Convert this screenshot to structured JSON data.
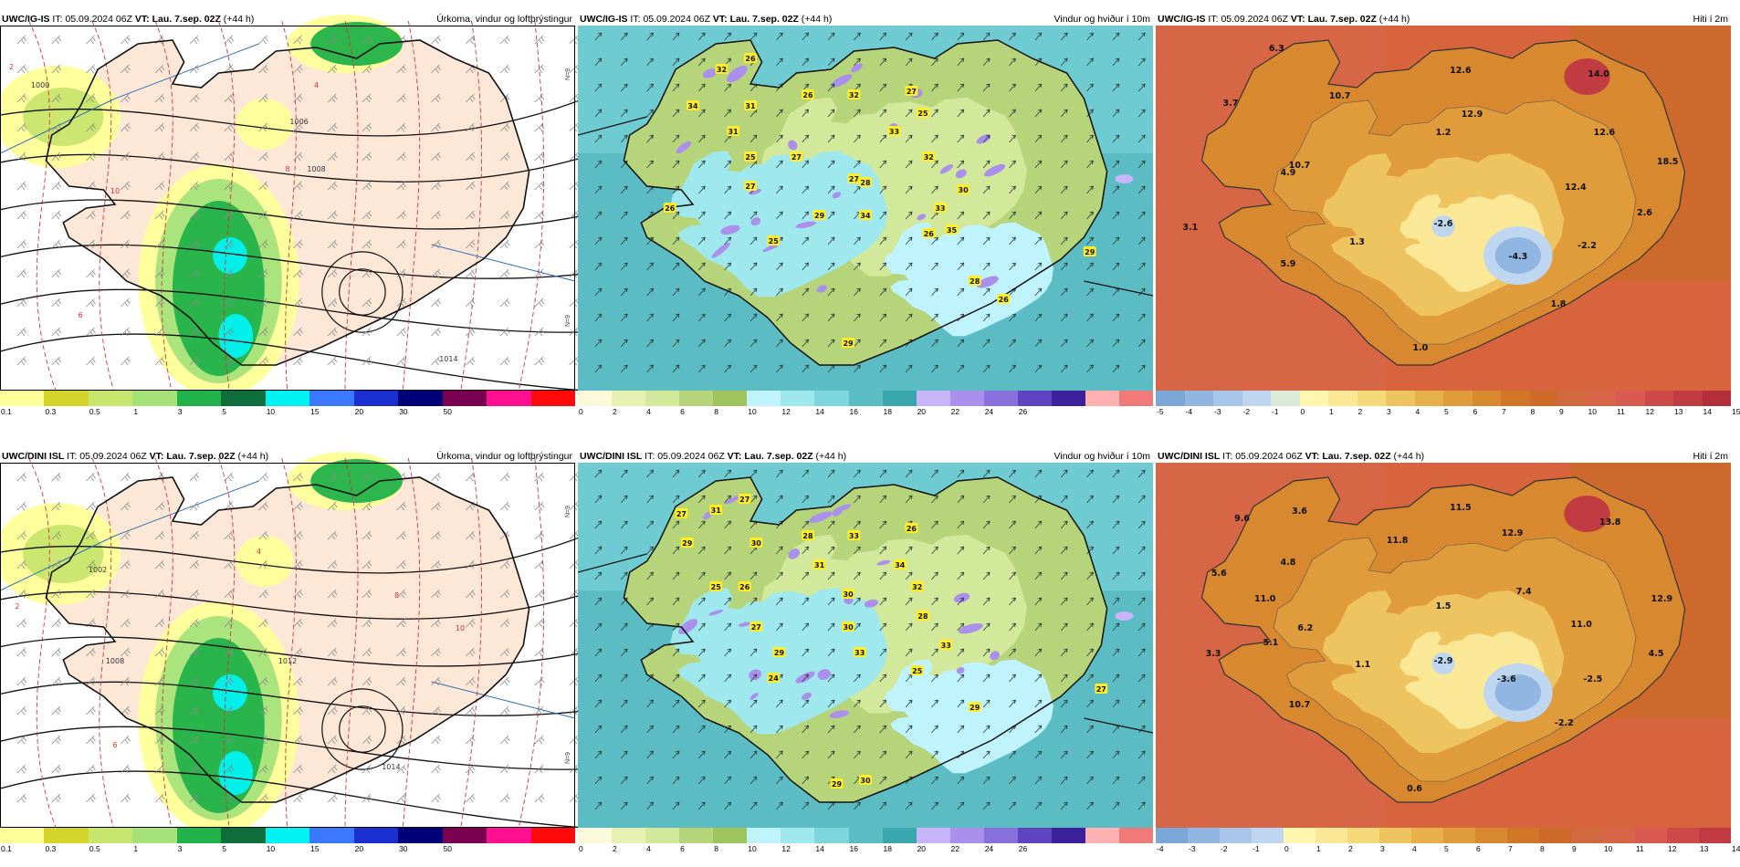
{
  "colorbars": {
    "precip": {
      "colors": [
        "#ffff99",
        "#d4d42a",
        "#c8e66e",
        "#a6e27a",
        "#22b24a",
        "#0e6d3a",
        "#00f2f2",
        "#3a78ff",
        "#1a2fd0",
        "#000078",
        "#7a0050",
        "#ff1090",
        "#ff0a0a"
      ],
      "ticks": [
        "0.1",
        "0.3",
        "0.5",
        "1",
        "3",
        "5",
        "10",
        "15",
        "20",
        "30",
        "50"
      ]
    },
    "wind": {
      "colors": [
        "#fafada",
        "#e8f0b4",
        "#d2e89a",
        "#b6d47a",
        "#9fc45e",
        "#bff4ff",
        "#9ee8ee",
        "#7cd6dc",
        "#5cbcc4",
        "#3aa6ae",
        "#c8b4f8",
        "#aa90ec",
        "#8870dc",
        "#5e44c0",
        "#3a209a",
        "#ffb0b0",
        "#f07a7a"
      ],
      "ticks": [
        "0",
        "2",
        "4",
        "6",
        "8",
        "10",
        "12",
        "14",
        "16",
        "18",
        "20",
        "22",
        "24",
        "26"
      ]
    },
    "temp_top": {
      "colors": [
        "#7ba6d8",
        "#92b6e2",
        "#a8c6ea",
        "#bfd6f0",
        "#dbead8",
        "#fff6b0",
        "#fae896",
        "#f5d878",
        "#eec460",
        "#e8b04a",
        "#e09c3a",
        "#d8882e",
        "#d07626",
        "#cc6a2a",
        "#d06a3e",
        "#d86448",
        "#d85a50",
        "#cc4a48",
        "#c03c42",
        "#b42e3a"
      ],
      "ticks": [
        "-5",
        "-4",
        "-3",
        "-2",
        "-1",
        "0",
        "1",
        "2",
        "3",
        "4",
        "5",
        "6",
        "7",
        "8",
        "9",
        "10",
        "11",
        "12",
        "13",
        "14",
        "15"
      ]
    },
    "temp_bot": {
      "colors": [
        "#7ba6d8",
        "#92b6e2",
        "#a8c6ea",
        "#bfd6f0",
        "#fff6b0",
        "#fae896",
        "#f5d878",
        "#eec460",
        "#e8b04a",
        "#e09c3a",
        "#d8882e",
        "#d07626",
        "#cc6a2a",
        "#d06a3e",
        "#d86448",
        "#d85a50",
        "#cc4a48",
        "#c03c42"
      ],
      "ticks": [
        "-4",
        "-3",
        "-2",
        "-1",
        "0",
        "1",
        "2",
        "3",
        "4",
        "5",
        "6",
        "7",
        "8",
        "9",
        "10",
        "11",
        "12",
        "13",
        "14"
      ]
    }
  },
  "panels": [
    {
      "model": "UWC/IG-IS",
      "it_label": "IT:",
      "it": "05.09.2024 06Z",
      "vt_label": "VT:",
      "vt": "Lau. 7.sep. 02Z",
      "lead": "(+44 h)",
      "variable": "Úrkoma, vindur og loftþrýstingur",
      "bar": "precip",
      "labels": [
        "1000",
        "1006",
        "1008",
        "1014",
        "10",
        "8",
        "6",
        "4",
        "2"
      ],
      "side": [
        "N=9",
        "N=9"
      ]
    },
    {
      "model": "UWC/IG-IS",
      "it_label": "IT:",
      "it": "05.09.2024 06Z",
      "vt_label": "VT:",
      "vt": "Lau. 7.sep. 02Z",
      "lead": "(+44 h)",
      "variable": "Vindur og hviður í 10m",
      "bar": "wind",
      "labels": [
        "32",
        "26",
        "34",
        "31",
        "31",
        "26",
        "32",
        "27",
        "25",
        "27",
        "33",
        "25",
        "27",
        "28",
        "32",
        "27",
        "30",
        "26",
        "29",
        "34",
        "33",
        "25",
        "26",
        "35",
        "29",
        "28",
        "26",
        "29"
      ]
    },
    {
      "model": "UWC/IG-IS",
      "it_label": "IT:",
      "it": "05.09.2024 06Z",
      "vt_label": "VT:",
      "vt": "Lau. 7.sep. 02Z",
      "lead": "(+44 h)",
      "variable": "Hiti í 2m",
      "bar": "temp_top",
      "labels": [
        "6.3",
        "3.7",
        "10.7",
        "12.6",
        "14.0",
        "12.9",
        "1.2",
        "12.6",
        "10.7",
        "4.9",
        "18.5",
        "12.4",
        "3.1",
        "1.3",
        "-2.6",
        "2.6",
        "5.9",
        "-4.3",
        "-2.2",
        "1.8",
        "1.0"
      ]
    },
    {
      "model": "UWC/DINI ISL",
      "it_label": "IT:",
      "it": "05.09.2024 06Z",
      "vt_label": "VT:",
      "vt": "Lau. 7.sep. 02Z",
      "lead": "(+44 h)",
      "variable": "Úrkoma, vindur og loftþrýstingur",
      "bar": "precip",
      "labels": [
        "1002",
        "1008",
        "1012",
        "1014",
        "10",
        "8",
        "6",
        "4",
        "2"
      ],
      "side": [
        "N=9",
        "N=9"
      ]
    },
    {
      "model": "UWC/DINI ISL",
      "it_label": "IT:",
      "it": "05.09.2024 06Z",
      "vt_label": "VT:",
      "vt": "Lau. 7.sep. 02Z",
      "lead": "(+44 h)",
      "variable": "Vindur og hviður í 10m",
      "bar": "wind",
      "labels": [
        "27",
        "31",
        "27",
        "29",
        "30",
        "28",
        "33",
        "26",
        "25",
        "26",
        "31",
        "34",
        "32",
        "30",
        "30",
        "27",
        "28",
        "29",
        "33",
        "33",
        "25",
        "24",
        "29",
        "27",
        "29",
        "30"
      ]
    },
    {
      "model": "UWC/DINI ISL",
      "it_label": "IT:",
      "it": "05.09.2024 06Z",
      "vt_label": "VT:",
      "vt": "Lau. 7.sep. 02Z",
      "lead": "(+44 h)",
      "variable": "Hiti í 2m",
      "bar": "temp_bot",
      "labels": [
        "9.6",
        "3.6",
        "11.5",
        "13.8",
        "5.6",
        "4.8",
        "11.8",
        "12.9",
        "11.0",
        "1.5",
        "7.4",
        "12.9",
        "6.2",
        "11.0",
        "5.1",
        "3.3",
        "1.1",
        "-2.9",
        "-3.6",
        "-2.5",
        "4.5",
        "10.7",
        "-2.2",
        "0.6"
      ]
    }
  ]
}
